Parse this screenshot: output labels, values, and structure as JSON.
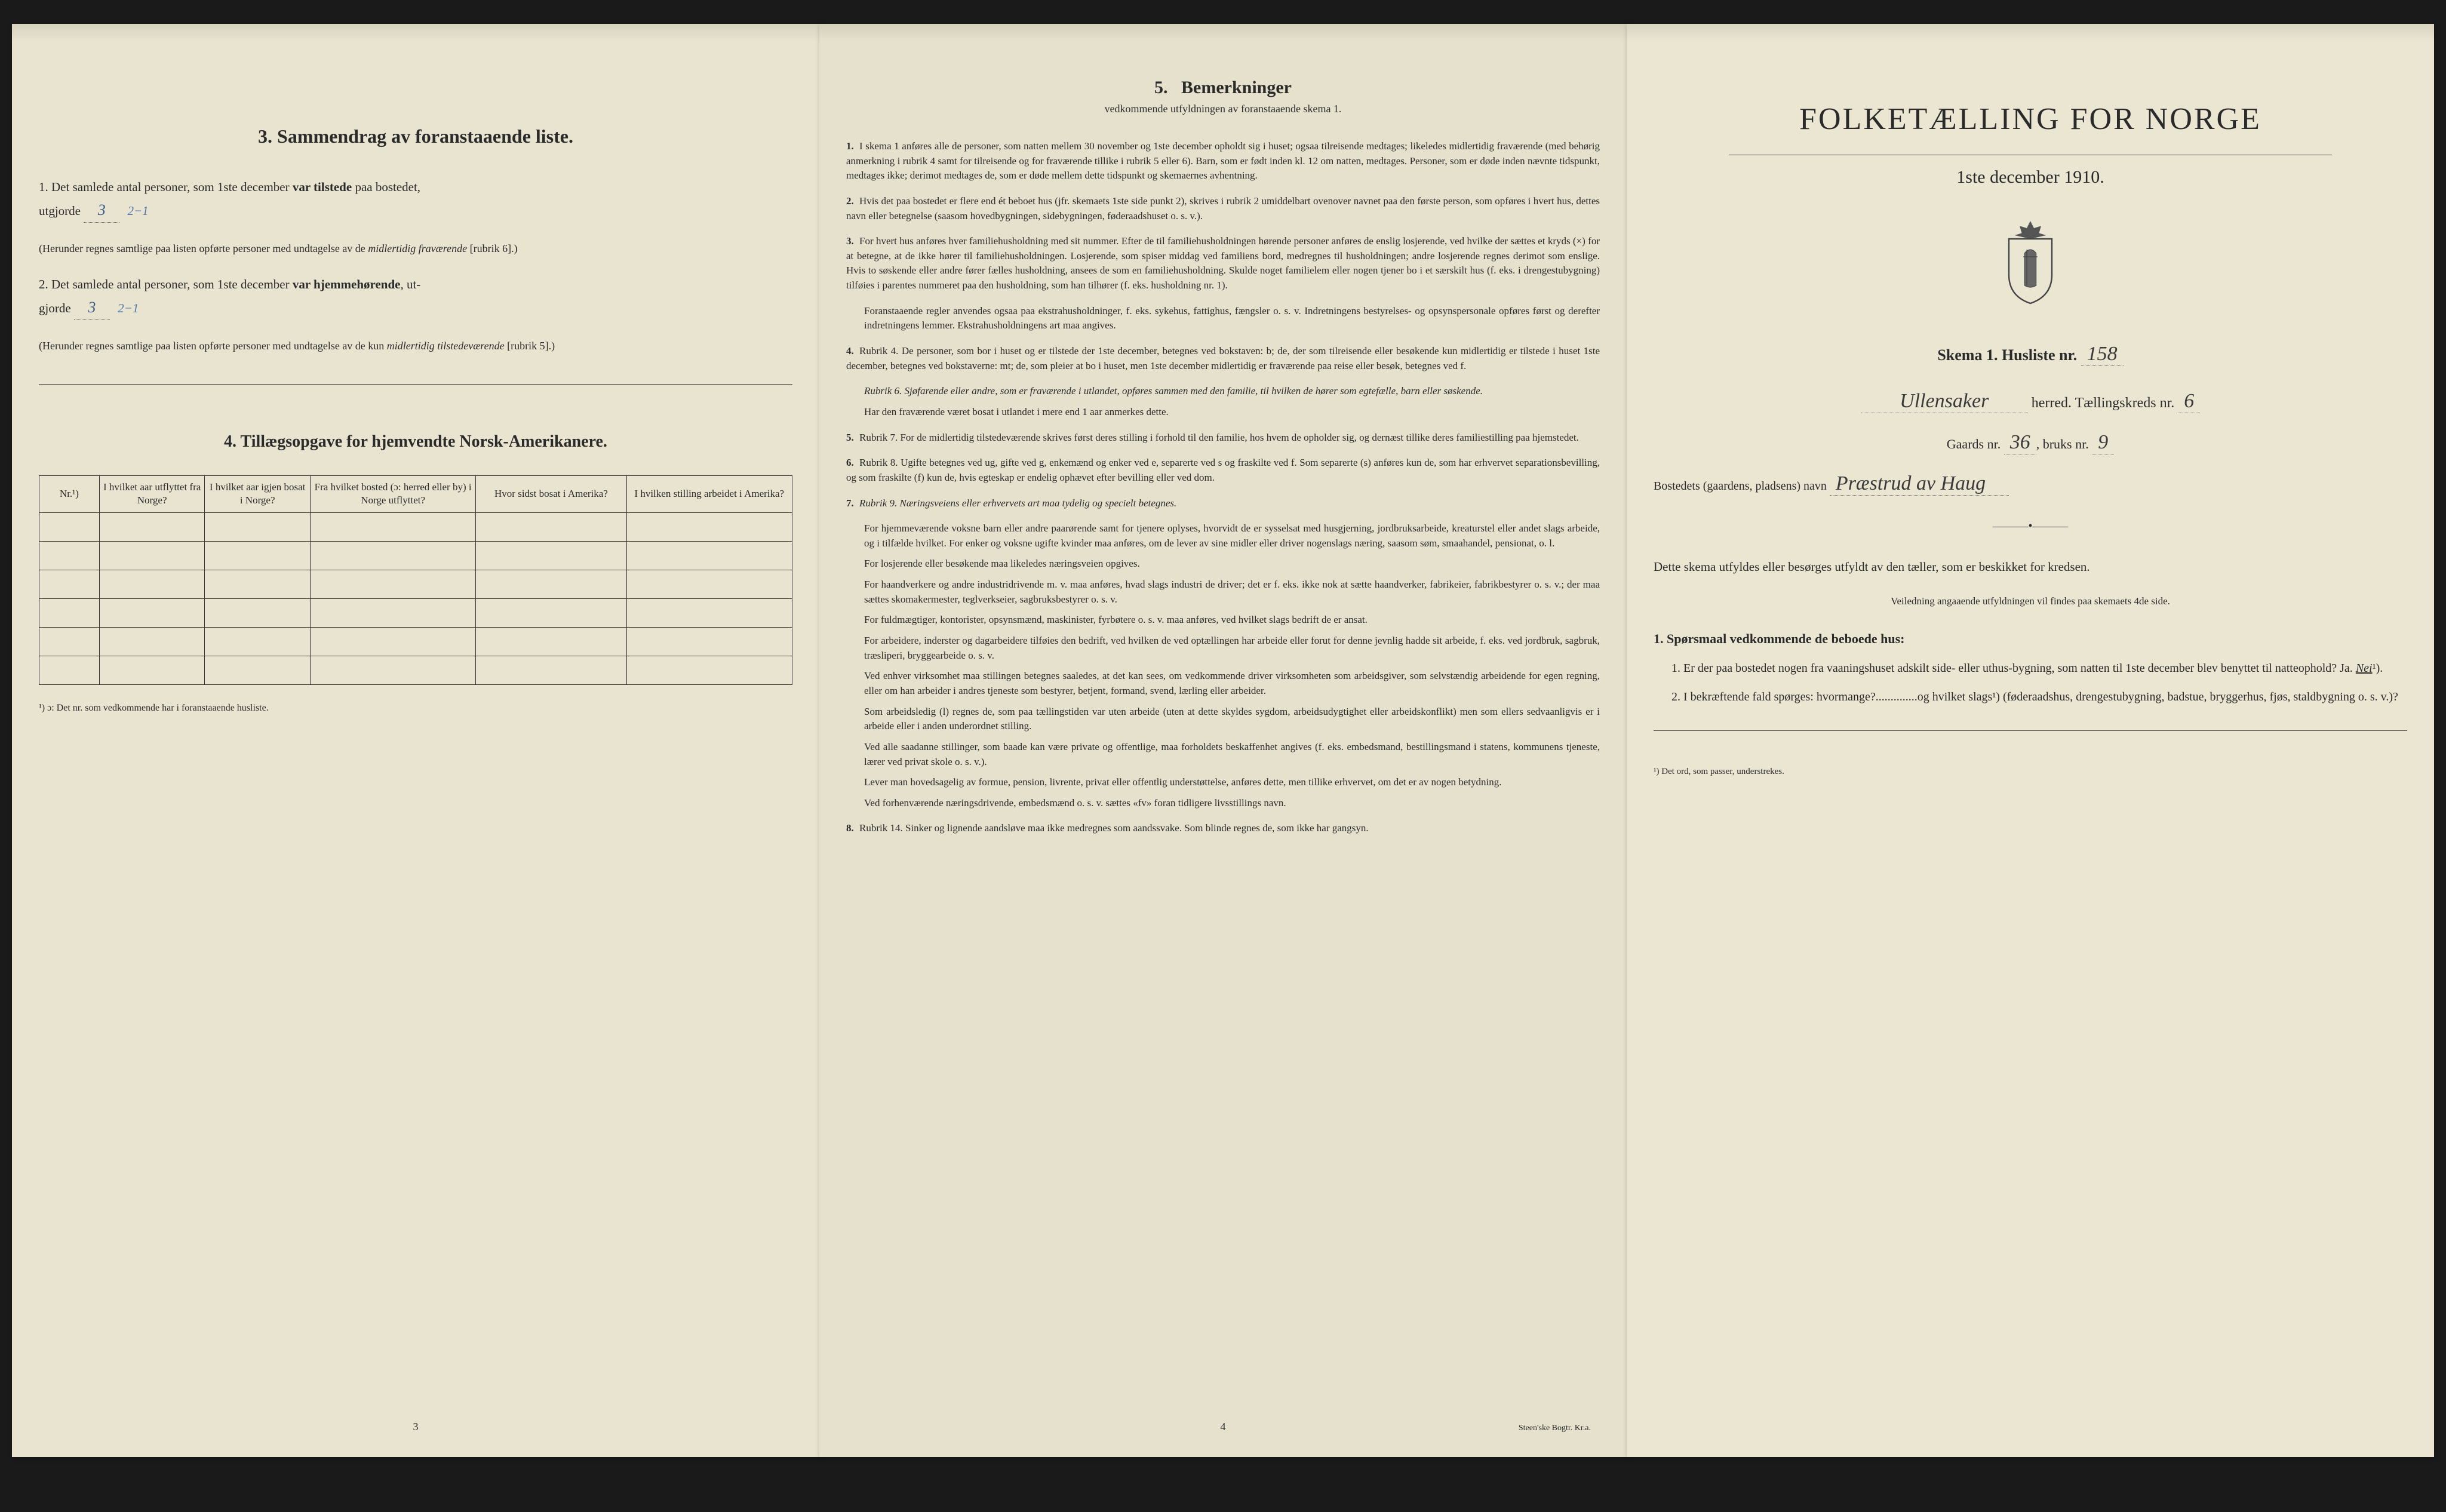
{
  "colors": {
    "paper": "#e8e4d0",
    "paper2": "#e5e1cc",
    "paper3": "#eae6d2",
    "ink": "#2a2a2a",
    "handwriting": "#3a5a8a",
    "background": "#1a1a1a"
  },
  "page1": {
    "section3_title": "3.   Sammendrag av foranstaaende liste.",
    "item1_pre": "1.  Det samlede antal personer, som 1ste december ",
    "item1_bold": "var tilstede",
    "item1_post": " paa bostedet,",
    "item1_line2_pre": "utgjorde",
    "item1_fill": "3",
    "item1_correction": "2−1",
    "item1_paren": "(Herunder regnes samtlige paa listen opførte personer med undtagelse av de ",
    "item1_paren_it": "midlertidig fraværende",
    "item1_paren_end": " [rubrik 6].)",
    "item2_pre": "2.  Det samlede antal personer, som 1ste december ",
    "item2_bold": "var hjemmehørende",
    "item2_post": ", ut-",
    "item2_line2_pre": "gjorde",
    "item2_fill": "3",
    "item2_correction": "2−1",
    "item2_paren": "(Herunder regnes samtlige paa listen opførte personer med undtagelse av de kun ",
    "item2_paren_it": "midlertidig tilstedeværende",
    "item2_paren_end": " [rubrik 5].)",
    "section4_title": "4.  Tillægsopgave for hjemvendte Norsk-Amerikanere.",
    "table": {
      "headers": [
        "Nr.¹)",
        "I hvilket aar utflyttet fra Norge?",
        "I hvilket aar igjen bosat i Norge?",
        "Fra hvilket bosted (ɔ: herred eller by) i Norge utflyttet?",
        "Hvor sidst bosat i Amerika?",
        "I hvilken stilling arbeidet i Amerika?"
      ],
      "rows": 6
    },
    "footnote": "¹) ɔ: Det nr. som vedkommende har i foranstaaende husliste.",
    "page_num": "3"
  },
  "page2": {
    "title_num": "5.",
    "title": "Bemerkninger",
    "subtitle": "vedkommende utfyldningen av foranstaaende skema 1.",
    "items": [
      "I skema 1 anføres alle de personer, som natten mellem 30 november og 1ste december opholdt sig i huset; ogsaa tilreisende medtages; likeledes midlertidig fraværende (med behørig anmerkning i rubrik 4 samt for tilreisende og for fraværende tillike i rubrik 5 eller 6). Barn, som er født inden kl. 12 om natten, medtages. Personer, som er døde inden nævnte tidspunkt, medtages ikke; derimot medtages de, som er døde mellem dette tidspunkt og skemaernes avhentning.",
      "Hvis det paa bostedet er flere end ét beboet hus (jfr. skemaets 1ste side punkt 2), skrives i rubrik 2 umiddelbart ovenover navnet paa den første person, som opføres i hvert hus, dettes navn eller betegnelse (saasom hovedbygningen, sidebygningen, føderaadshuset o. s. v.).",
      "For hvert hus anføres hver familiehusholdning med sit nummer. Efter de til familiehusholdningen hørende personer anføres de enslig losjerende, ved hvilke der sættes et kryds (×) for at betegne, at de ikke hører til familiehusholdningen. Losjerende, som spiser middag ved familiens bord, medregnes til husholdningen; andre losjerende regnes derimot som enslige. Hvis to søskende eller andre fører fælles husholdning, ansees de som en familiehusholdning. Skulde noget familielem eller nogen tjener bo i et særskilt hus (f. eks. i drengestubygning) tilføies i parentes nummeret paa den husholdning, som han tilhører (f. eks. husholdning nr. 1).",
      "Rubrik 4. De personer, som bor i huset og er tilstede der 1ste december, betegnes ved bokstaven: b; de, der som tilreisende eller besøkende kun midlertidig er tilstede i huset 1ste december, betegnes ved bokstaverne: mt; de, som pleier at bo i huset, men 1ste december midlertidig er fraværende paa reise eller besøk, betegnes ved f.",
      "Rubrik 7. For de midlertidig tilstedeværende skrives først deres stilling i forhold til den familie, hos hvem de opholder sig, og dernæst tillike deres familiestilling paa hjemstedet.",
      "Rubrik 8. Ugifte betegnes ved ug, gifte ved g, enkemænd og enker ved e, separerte ved s og fraskilte ved f. Som separerte (s) anføres kun de, som har erhvervet separationsbevilling, og som fraskilte (f) kun de, hvis egteskap er endelig ophævet efter bevilling eller ved dom.",
      "Rubrik 9. Næringsveiens eller erhvervets art maa tydelig og specielt betegnes.",
      "Rubrik 14. Sinker og lignende aandsløve maa ikke medregnes som aandssvake. Som blinde regnes de, som ikke har gangsyn."
    ],
    "item3_extra": "Foranstaaende regler anvendes ogsaa paa ekstrahusholdninger, f. eks. sykehus, fattighus, fængsler o. s. v. Indretningens bestyrelses- og opsynspersonale opføres først og derefter indretningens lemmer. Ekstrahusholdningens art maa angives.",
    "item4_extra1": "Rubrik 6. Sjøfarende eller andre, som er fraværende i utlandet, opføres sammen med den familie, til hvilken de hører som egtefælle, barn eller søskende.",
    "item4_extra2": "Har den fraværende været bosat i utlandet i mere end 1 aar anmerkes dette.",
    "item7_extras": [
      "For hjemmeværende voksne barn eller andre paarørende samt for tjenere oplyses, hvorvidt de er sysselsat med husgjerning, jordbruksarbeide, kreaturstel eller andet slags arbeide, og i tilfælde hvilket. For enker og voksne ugifte kvinder maa anføres, om de lever av sine midler eller driver nogenslags næring, saasom søm, smaahandel, pensionat, o. l.",
      "For losjerende eller besøkende maa likeledes næringsveien opgives.",
      "For haandverkere og andre industridrivende m. v. maa anføres, hvad slags industri de driver; det er f. eks. ikke nok at sætte haandverker, fabrikeier, fabrikbestyrer o. s. v.; der maa sættes skomakermester, teglverkseier, sagbruksbestyrer o. s. v.",
      "For fuldmægtiger, kontorister, opsynsmænd, maskinister, fyrbøtere o. s. v. maa anføres, ved hvilket slags bedrift de er ansat.",
      "For arbeidere, inderster og dagarbeidere tilføies den bedrift, ved hvilken de ved optællingen har arbeide eller forut for denne jevnlig hadde sit arbeide, f. eks. ved jordbruk, sagbruk, træsliperi, bryggearbeide o. s. v.",
      "Ved enhver virksomhet maa stillingen betegnes saaledes, at det kan sees, om vedkommende driver virksomheten som arbeidsgiver, som selvstændig arbeidende for egen regning, eller om han arbeider i andres tjeneste som bestyrer, betjent, formand, svend, lærling eller arbeider.",
      "Som arbeidsledig (l) regnes de, som paa tællingstiden var uten arbeide (uten at dette skyldes sygdom, arbeidsudygtighet eller arbeidskonflikt) men som ellers sedvaanligvis er i arbeide eller i anden underordnet stilling.",
      "Ved alle saadanne stillinger, som baade kan være private og offentlige, maa forholdets beskaffenhet angives (f. eks. embedsmand, bestillingsmand i statens, kommunens tjeneste, lærer ved privat skole o. s. v.).",
      "Lever man hovedsagelig av formue, pension, livrente, privat eller offentlig understøttelse, anføres dette, men tillike erhvervet, om det er av nogen betydning.",
      "Ved forhenværende næringsdrivende, embedsmænd o. s. v. sættes «fv» foran tidligere livsstillings navn."
    ],
    "page_num": "4",
    "printer": "Steen'ske Bogtr.  Kr.a."
  },
  "page3": {
    "main_title": "FOLKETÆLLING FOR NORGE",
    "date": "1ste december 1910.",
    "skema_label": "Skema 1.   Husliste nr.",
    "husliste_nr": "158",
    "herred_name": "Ullensaker",
    "herred_label": "herred.  Tællingskreds nr.",
    "kreds_nr": "6",
    "gaards_label": "Gaards nr.",
    "gaards_nr": "36",
    "bruks_label": "bruks nr.",
    "bruks_nr": "9",
    "bosted_label": "Bostedets (gaardens, pladsens) navn",
    "bosted_name": "Præstrud av Haug",
    "instruct": "Dette skema utfyldes eller besørges utfyldt av den tæller, som er beskikket for kredsen.",
    "instruct_sub": "Veiledning angaaende utfyldningen vil findes paa skemaets 4de side.",
    "q_header": "1.  Spørsmaal vedkommende de beboede hus:",
    "q1": "1.  Er der paa bostedet nogen fra vaaningshuset adskilt side- eller uthus-bygning, som natten til 1ste december blev benyttet til natteophold?   Ja.   ",
    "q1_answer": "Nei",
    "q1_sup": "¹).",
    "q2": "2.  I bekræftende fald spørges: hvormange?..............og hvilket slags¹) (føderaadshus, drengestubygning, badstue, bryggerhus, fjøs, staldbygning o. s. v.)?",
    "footnote": "¹) Det ord, som passer, understrekes."
  }
}
